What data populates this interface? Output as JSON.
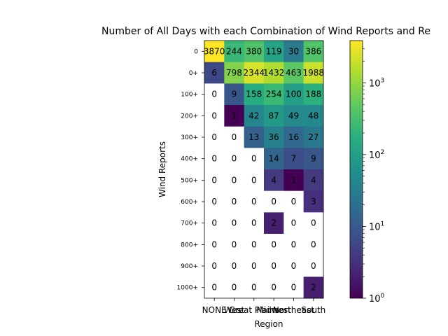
{
  "chart_data": {
    "type": "heatmap",
    "title": "Number of All Days with each Combination of Wind Reports and Re",
    "xlabel": "Region",
    "ylabel": "Wind Reports",
    "x_categories": [
      "NONE",
      "West",
      "Great Plains",
      "Midwest",
      "Northeast",
      "South"
    ],
    "y_categories": [
      "0",
      "0+",
      "100+",
      "200+",
      "300+",
      "400+",
      "500+",
      "600+",
      "700+",
      "800+",
      "900+",
      "1000+"
    ],
    "values": [
      [
        3870,
        244,
        380,
        119,
        30,
        386
      ],
      [
        6,
        798,
        2344,
        1432,
        463,
        1988
      ],
      [
        0,
        9,
        158,
        254,
        100,
        188
      ],
      [
        0,
        1,
        42,
        87,
        49,
        48
      ],
      [
        0,
        0,
        13,
        36,
        16,
        27
      ],
      [
        0,
        0,
        0,
        14,
        7,
        9
      ],
      [
        0,
        0,
        0,
        4,
        1,
        4
      ],
      [
        0,
        0,
        0,
        0,
        0,
        3
      ],
      [
        0,
        0,
        0,
        2,
        0,
        0
      ],
      [
        0,
        0,
        0,
        0,
        0,
        0
      ],
      [
        0,
        0,
        0,
        0,
        0,
        0
      ],
      [
        0,
        0,
        0,
        0,
        0,
        2
      ]
    ],
    "colorbar": {
      "scale": "log",
      "colormap": "viridis",
      "range": [
        1,
        3870
      ],
      "tick_labels": [
        "10^0",
        "10^1",
        "10^2",
        "10^3"
      ]
    },
    "zero_cell_color": "#ffffff",
    "grid": false,
    "legend": "none"
  }
}
